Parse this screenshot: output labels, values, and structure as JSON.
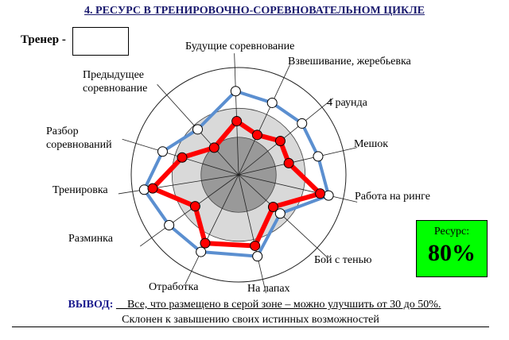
{
  "title": "4. РЕСУРС В  ТРЕНИРОВОЧНО-СОРЕВНОВАТЕЛЬНОМ  ЦИКЛЕ",
  "coach_label": "Тренер -",
  "coach_value": "",
  "resource": {
    "label": "Ресурс:",
    "value": "80%",
    "color": "#00ff00"
  },
  "conclusion": {
    "label": "ВЫВОД:",
    "line1": "__Все, что размещено в серой зоне – можно улучшить от 30 до 50%.",
    "line2": "Склонен к завышению своих истинных возможностей"
  },
  "chart_data": {
    "type": "radar",
    "categories": [
      "Будущие соревнование",
      "Взвешивание, жеребьевка",
      "4 раунда",
      "Мешок",
      "Работа на ринге",
      "Бой с тенью",
      "На лапах",
      "Отработка",
      "Разминка",
      "Тренировка",
      "Разбор соревнований",
      "Предыдущее соревнование"
    ],
    "series": [
      {
        "values": [
          78,
          74,
          76,
          76,
          86,
          53,
          78,
          80,
          80,
          89,
          74,
          57
        ],
        "color": "#5b8fd0",
        "marker": "white"
      },
      {
        "values": [
          50,
          41,
          50,
          48,
          78,
          44,
          68,
          71,
          50,
          81,
          55,
          34
        ],
        "color": "#ff0000",
        "marker": "red"
      }
    ],
    "rmax": 100,
    "zones": [
      {
        "r": 35,
        "color": "#999999"
      },
      {
        "r": 62,
        "color": "#d9d9d9"
      }
    ],
    "grid": true
  }
}
